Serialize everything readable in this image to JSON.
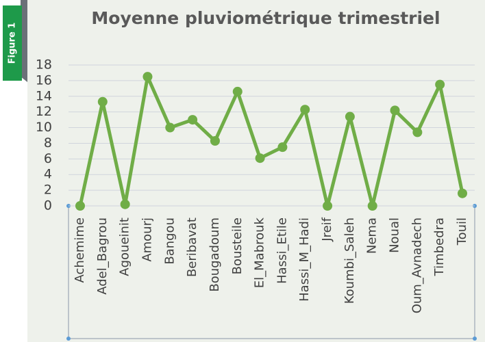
{
  "figure_label": "Figure 1",
  "chart_data": {
    "type": "line",
    "title": "Moyenne pluviométrique trimestriel",
    "categories": [
      "Achemime",
      "Adel_Bagrou",
      "Agoueinit",
      "Amourj",
      "Bangou",
      "Beribavat",
      "Bougadoum",
      "Bousteile",
      "El_Mabrouk",
      "Hassi_Etile",
      "Hassi_M_Hadi",
      "Jreif",
      "Koumbi_Saleh",
      "Nema",
      "Noual",
      "Oum_Avnadech",
      "Timbedra",
      "Touil"
    ],
    "series": [
      {
        "name": "Moyenne",
        "color": "#70ad47",
        "values": [
          0,
          13.3,
          0.2,
          16.5,
          10,
          11,
          8.3,
          14.6,
          6.1,
          7.5,
          12.3,
          0,
          11.4,
          0,
          12.2,
          9.4,
          15.5,
          1.6
        ]
      }
    ],
    "ylim": [
      0,
      18
    ],
    "yticks": [
      0,
      2,
      4,
      6,
      8,
      10,
      12,
      14,
      16,
      18
    ],
    "grid": true,
    "legend": false
  }
}
